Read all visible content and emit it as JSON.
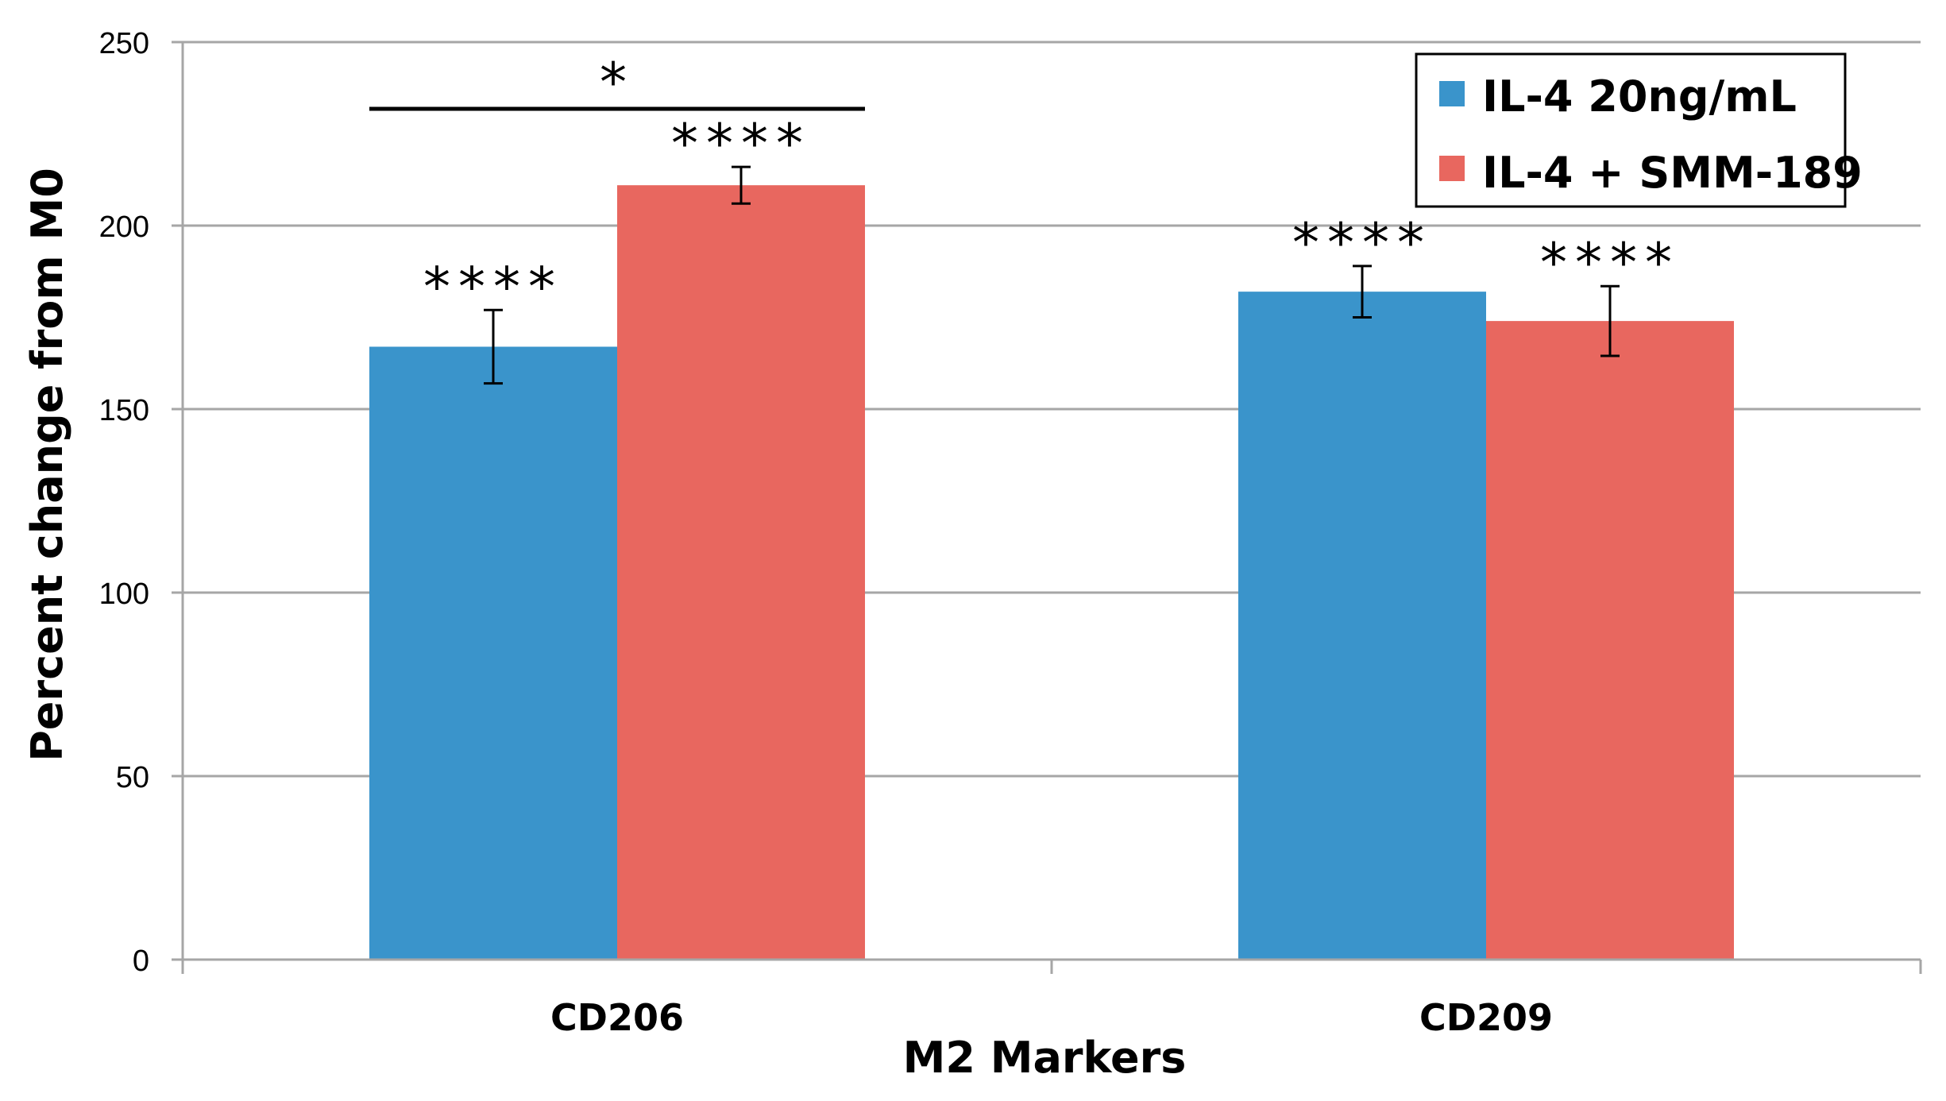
{
  "chart_data": {
    "type": "bar",
    "title": "",
    "xlabel": "M2 Markers",
    "ylabel": "Percent change from M0",
    "ylim": [
      0,
      250
    ],
    "yticks": [
      0,
      50,
      100,
      150,
      200,
      250
    ],
    "grid": true,
    "legend_position": "top-right",
    "categories": [
      "CD206",
      "CD209"
    ],
    "series": [
      {
        "name": "IL-4 20ng/mL",
        "color": "#3a94cb",
        "values": [
          167,
          182
        ],
        "errors": [
          10,
          7
        ],
        "significance": [
          "****",
          "****"
        ]
      },
      {
        "name": "IL-4 + SMM-189",
        "color": "#e8675f",
        "values": [
          211,
          174
        ],
        "errors": [
          5,
          9.5
        ],
        "significance": [
          "****",
          "****"
        ]
      }
    ],
    "comparison": {
      "category": "CD206",
      "label": "*"
    }
  }
}
